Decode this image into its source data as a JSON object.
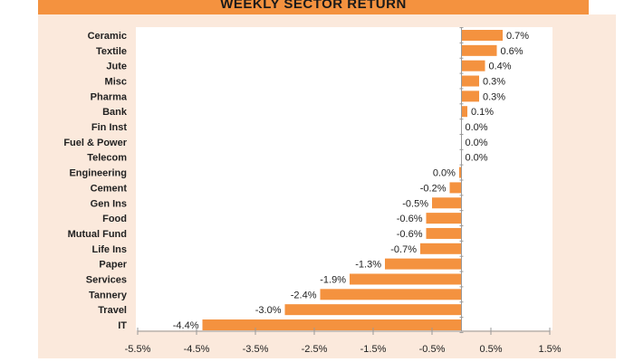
{
  "chart_data": {
    "type": "bar",
    "orientation": "horizontal",
    "title": "WEEKLY SECTOR RETURN",
    "xlabel": "",
    "ylabel": "",
    "xlim": [
      -5.5,
      1.5
    ],
    "xticks": [
      "-5.5%",
      "-4.5%",
      "-3.5%",
      "-2.5%",
      "-1.5%",
      "-0.5%",
      "0.5%",
      "1.5%"
    ],
    "xtick_values": [
      -5.5,
      -4.5,
      -3.5,
      -2.5,
      -1.5,
      -0.5,
      0.5,
      1.5
    ],
    "grid": false,
    "bar_color": "#f4923f",
    "categories": [
      "Ceramic",
      "Textile",
      "Jute",
      "Misc",
      "Pharma",
      "Bank",
      "Fin Inst",
      "Fuel & Power",
      "Telecom",
      "Engineering",
      "Cement",
      "Gen Ins",
      "Food",
      "Mutual Fund",
      "Life Ins",
      "Paper",
      "Services",
      "Tannery",
      "Travel",
      "IT"
    ],
    "values": [
      0.7,
      0.6,
      0.4,
      0.3,
      0.3,
      0.1,
      0.0,
      0.0,
      0.0,
      -0.04,
      -0.2,
      -0.5,
      -0.6,
      -0.6,
      -0.7,
      -1.3,
      -1.9,
      -2.4,
      -3.0,
      -4.4
    ],
    "labels": [
      "0.7%",
      "0.6%",
      "0.4%",
      "0.3%",
      "0.3%",
      "0.1%",
      "0.0%",
      "0.0%",
      "0.0%",
      "0.0%",
      "-0.2%",
      "-0.5%",
      "-0.6%",
      "-0.6%",
      "-0.7%",
      "-1.3%",
      "-1.9%",
      "-2.4%",
      "-3.0%",
      "-4.4%"
    ]
  }
}
